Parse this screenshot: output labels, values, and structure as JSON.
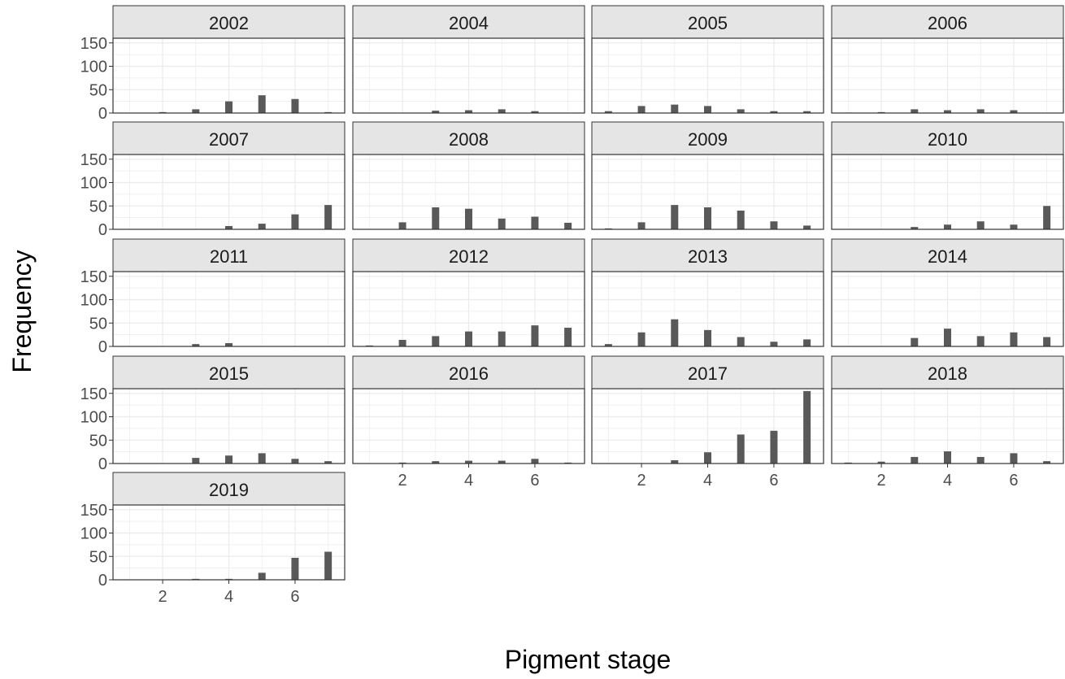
{
  "chart_data": {
    "type": "bar",
    "xlabel": "Pigment stage",
    "ylabel": "Frequency",
    "xlim": [
      0.5,
      7.5
    ],
    "ylim": [
      0,
      160
    ],
    "x_ticks": [
      "2",
      "4",
      "6"
    ],
    "y_ticks": [
      "0",
      "50",
      "100",
      "150"
    ],
    "grid": true,
    "bar_color": "#595959",
    "panels": [
      {
        "label": "2002",
        "x": [
          1,
          2,
          3,
          4,
          5,
          6,
          7
        ],
        "values": [
          0,
          2,
          8,
          25,
          38,
          30,
          2
        ]
      },
      {
        "label": "2004",
        "x": [
          1,
          2,
          3,
          4,
          5,
          6,
          7
        ],
        "values": [
          0,
          0,
          5,
          6,
          8,
          4,
          0
        ]
      },
      {
        "label": "2005",
        "x": [
          1,
          2,
          3,
          4,
          5,
          6,
          7
        ],
        "values": [
          4,
          15,
          18,
          15,
          8,
          4,
          4
        ]
      },
      {
        "label": "2006",
        "x": [
          1,
          2,
          3,
          4,
          5,
          6,
          7
        ],
        "values": [
          1,
          2,
          8,
          6,
          8,
          6,
          0
        ]
      },
      {
        "label": "2007",
        "x": [
          1,
          2,
          3,
          4,
          5,
          6,
          7
        ],
        "values": [
          0,
          0,
          0,
          7,
          12,
          32,
          52
        ]
      },
      {
        "label": "2008",
        "x": [
          1,
          2,
          3,
          4,
          5,
          6,
          7
        ],
        "values": [
          0,
          15,
          47,
          44,
          23,
          27,
          14
        ]
      },
      {
        "label": "2009",
        "x": [
          1,
          2,
          3,
          4,
          5,
          6,
          7
        ],
        "values": [
          2,
          15,
          52,
          47,
          40,
          17,
          8
        ]
      },
      {
        "label": "2010",
        "x": [
          1,
          2,
          3,
          4,
          5,
          6,
          7
        ],
        "values": [
          0,
          0,
          5,
          10,
          17,
          10,
          50
        ]
      },
      {
        "label": "2011",
        "x": [
          1,
          2,
          3,
          4,
          5,
          6,
          7
        ],
        "values": [
          0,
          0,
          5,
          7,
          0,
          0,
          0
        ]
      },
      {
        "label": "2012",
        "x": [
          1,
          2,
          3,
          4,
          5,
          6,
          7
        ],
        "values": [
          2,
          14,
          22,
          32,
          32,
          45,
          40
        ]
      },
      {
        "label": "2013",
        "x": [
          1,
          2,
          3,
          4,
          5,
          6,
          7
        ],
        "values": [
          5,
          30,
          58,
          35,
          20,
          10,
          15
        ]
      },
      {
        "label": "2014",
        "x": [
          1,
          2,
          3,
          4,
          5,
          6,
          7
        ],
        "values": [
          0,
          0,
          18,
          38,
          22,
          30,
          20
        ]
      },
      {
        "label": "2015",
        "x": [
          1,
          2,
          3,
          4,
          5,
          6,
          7
        ],
        "values": [
          0,
          0,
          12,
          17,
          22,
          10,
          5
        ]
      },
      {
        "label": "2016",
        "x": [
          1,
          2,
          3,
          4,
          5,
          6,
          7
        ],
        "values": [
          0,
          2,
          5,
          6,
          6,
          10,
          2
        ]
      },
      {
        "label": "2017",
        "x": [
          1,
          2,
          3,
          4,
          5,
          6,
          7
        ],
        "values": [
          0,
          0,
          7,
          24,
          62,
          70,
          155
        ]
      },
      {
        "label": "2018",
        "x": [
          1,
          2,
          3,
          4,
          5,
          6,
          7
        ],
        "values": [
          2,
          4,
          14,
          26,
          14,
          22,
          5
        ]
      },
      {
        "label": "2019",
        "x": [
          1,
          2,
          3,
          4,
          5,
          6,
          7
        ],
        "values": [
          0,
          0,
          2,
          2,
          15,
          47,
          60
        ]
      }
    ]
  }
}
